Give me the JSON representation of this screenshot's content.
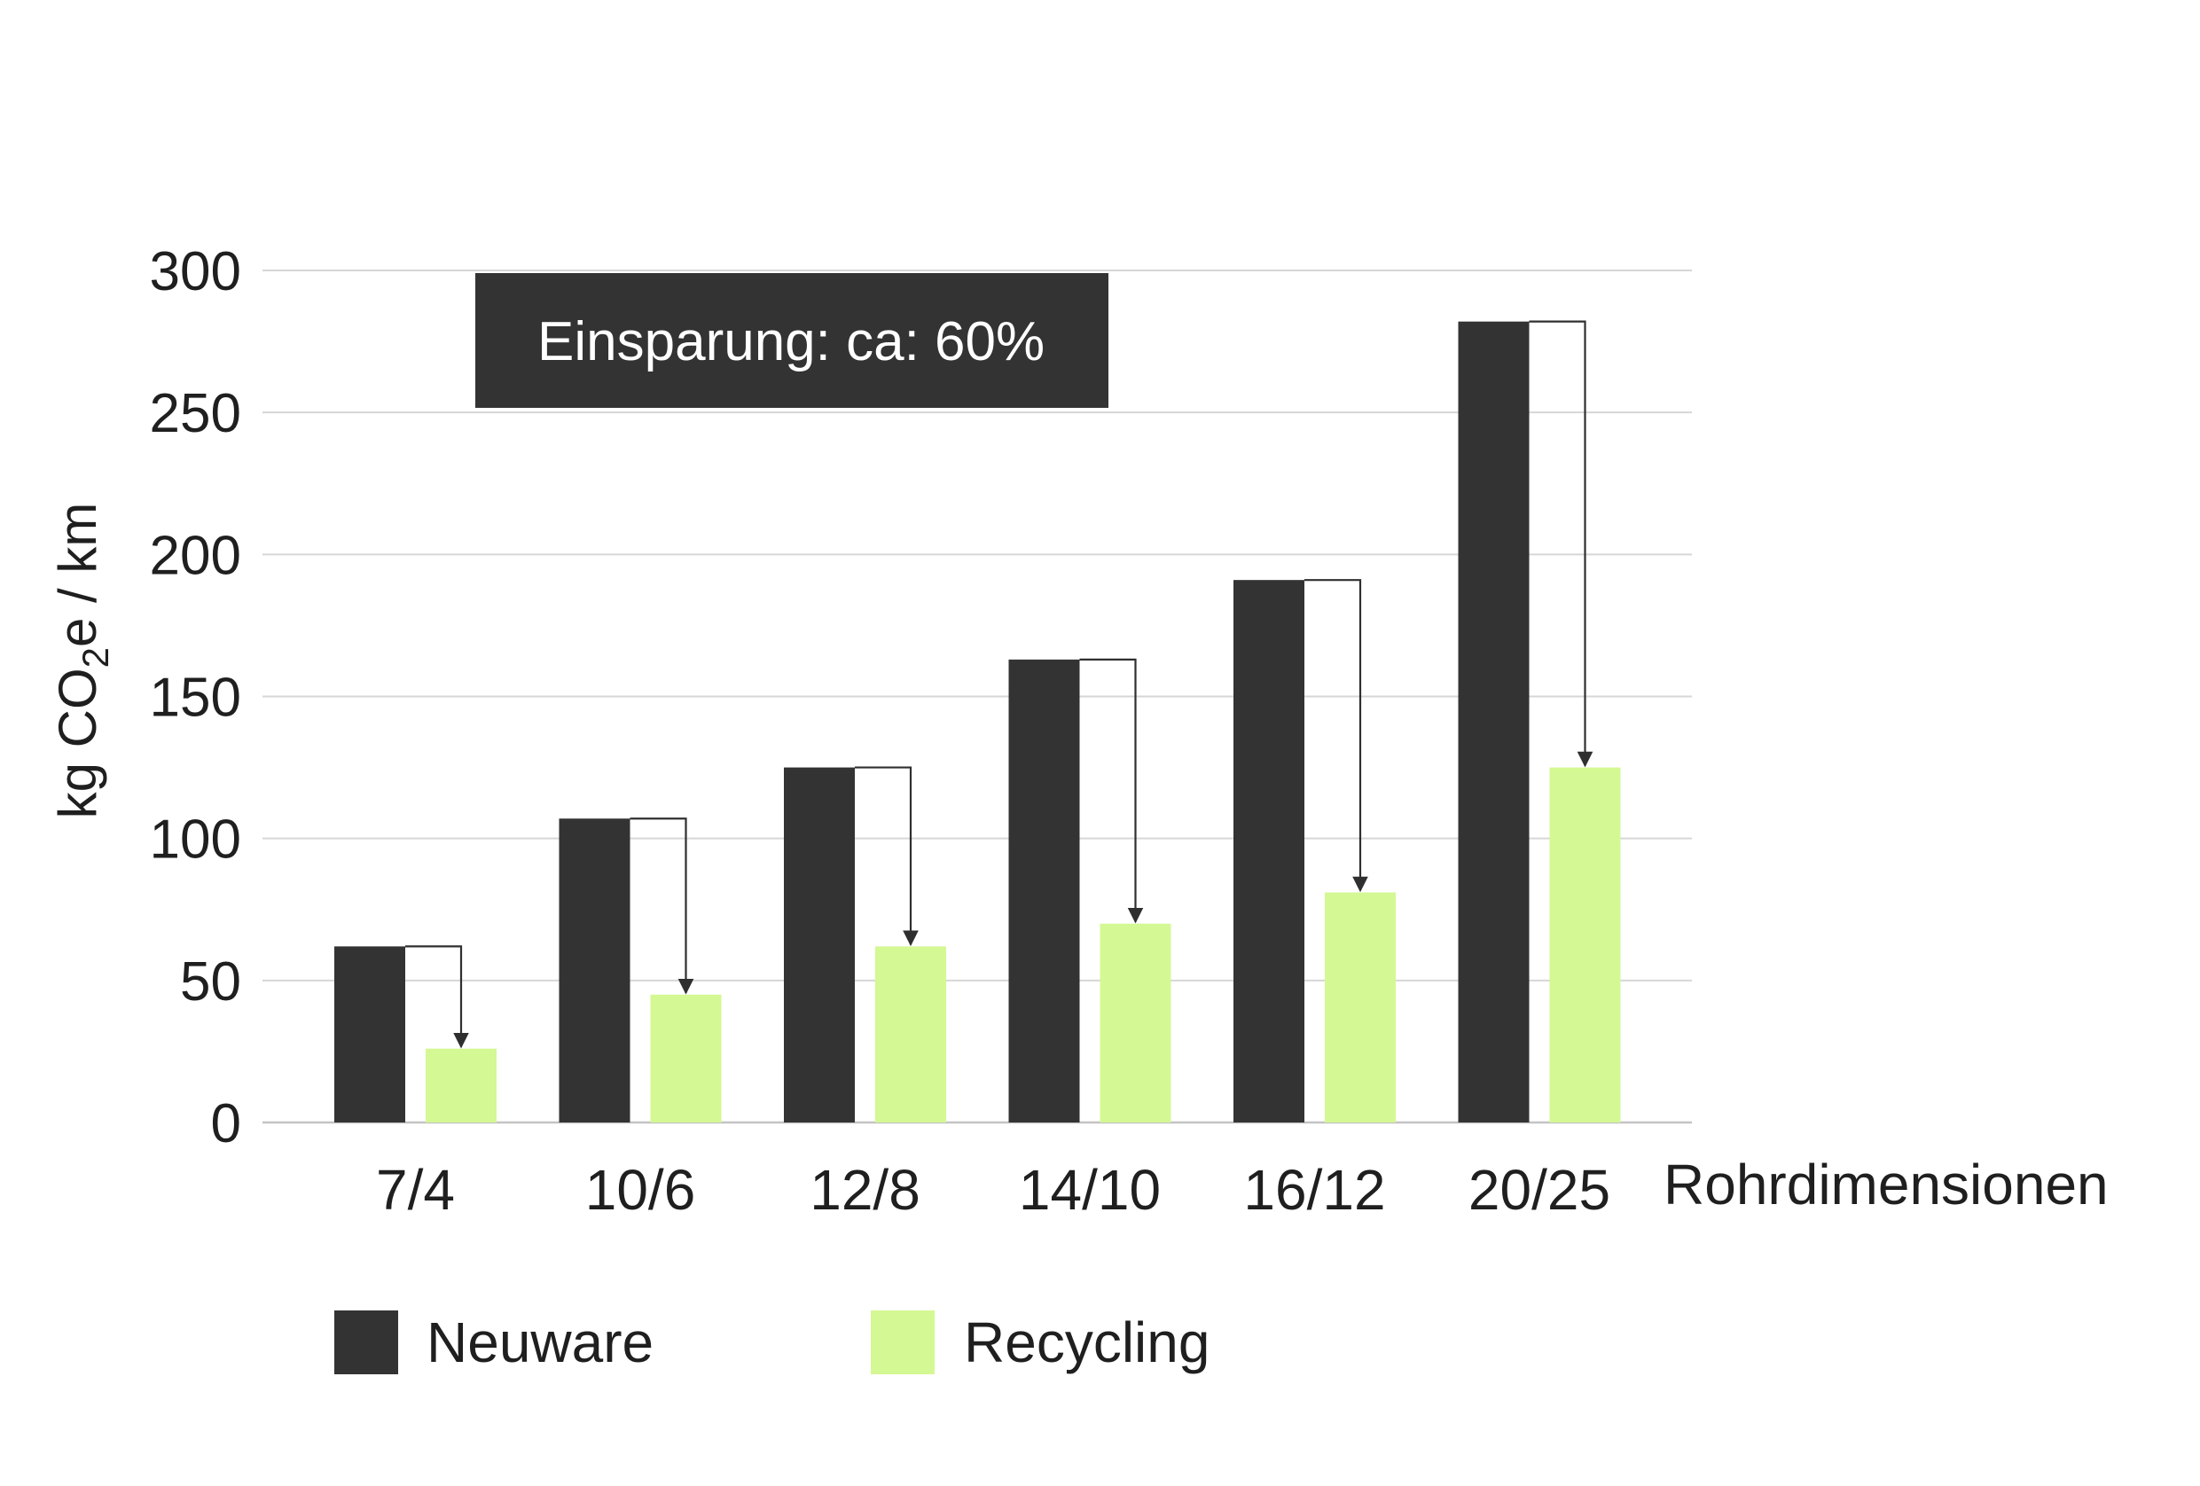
{
  "chart_data": {
    "type": "bar",
    "categories": [
      "7/4",
      "10/6",
      "12/8",
      "14/10",
      "16/12",
      "20/25"
    ],
    "series": [
      {
        "name": "Neuware",
        "values": [
          62,
          107,
          125,
          163,
          191,
          282
        ],
        "color": "#333333"
      },
      {
        "name": "Recycling",
        "values": [
          26,
          45,
          62,
          70,
          81,
          125
        ],
        "color": "#d4f893"
      }
    ],
    "title": "",
    "xlabel": "Rohrdimensionen",
    "ylabel": {
      "prefix": "kg CO",
      "subscript": "2",
      "suffix": "e / km"
    },
    "ylim": [
      0,
      300
    ],
    "yticks": [
      0,
      50,
      100,
      150,
      200,
      250,
      300
    ],
    "grid": true,
    "legend_position": "bottom-left",
    "annotation": "Einsparung: ca: 60%",
    "annotation_style": {
      "background": "#333333",
      "text_color": "#ffffff"
    },
    "arrows": "from each Neuware bar top to the matching Recycling bar top"
  }
}
